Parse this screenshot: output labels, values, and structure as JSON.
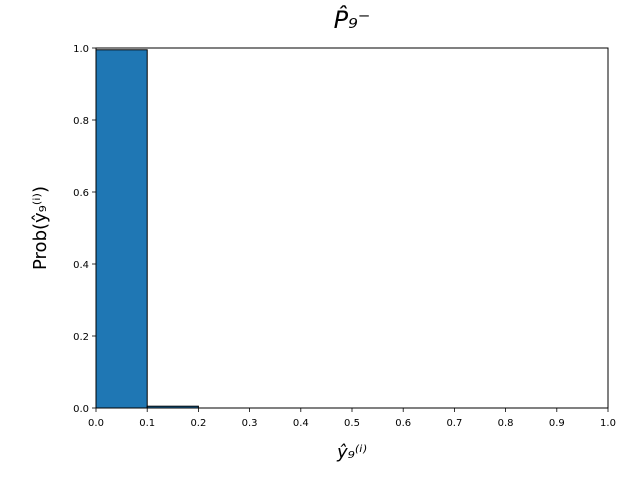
{
  "chart_data": {
    "type": "histogram",
    "title": "P̂₉⁻",
    "xlabel": "ŷ₉⁽ⁱ⁾",
    "ylabel": "Prob(ŷ₉⁽ⁱ⁾)",
    "bins": [
      0,
      0.1,
      0.2,
      0.3,
      0.4,
      0.5,
      0.6,
      0.7,
      0.8,
      0.9,
      1.0
    ],
    "values": [
      0.995,
      0.005,
      0,
      0,
      0,
      0,
      0,
      0,
      0,
      0
    ],
    "color": "#1f77b4",
    "edgecolor": "#000000",
    "xlim": [
      0,
      1
    ],
    "ylim": [
      0,
      1
    ],
    "xticks": [
      {
        "value": 0,
        "label": "0.0"
      },
      {
        "value": 0.1,
        "label": "0.1"
      },
      {
        "value": 0.2,
        "label": "0.2"
      },
      {
        "value": 0.3,
        "label": "0.3"
      },
      {
        "value": 0.4,
        "label": "0.4"
      },
      {
        "value": 0.5,
        "label": "0.5"
      },
      {
        "value": 0.6,
        "label": "0.6"
      },
      {
        "value": 0.7,
        "label": "0.7"
      },
      {
        "value": 0.8,
        "label": "0.8"
      },
      {
        "value": 0.9,
        "label": "0.9"
      },
      {
        "value": 1.0,
        "label": "1.0"
      }
    ],
    "yticks": [
      {
        "value": 0,
        "label": "0.0"
      },
      {
        "value": 0.2,
        "label": "0.2"
      },
      {
        "value": 0.4,
        "label": "0.4"
      },
      {
        "value": 0.6,
        "label": "0.6"
      },
      {
        "value": 0.8,
        "label": "0.8"
      },
      {
        "value": 1.0,
        "label": "1.0"
      }
    ],
    "grid": false
  }
}
